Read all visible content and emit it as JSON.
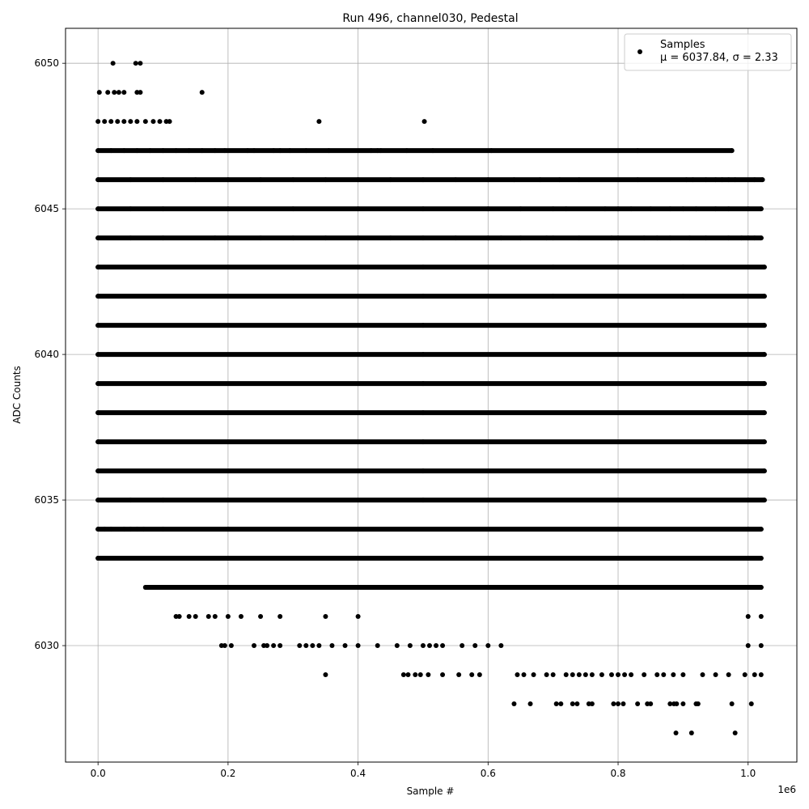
{
  "chart_data": {
    "type": "scatter",
    "title": "Run 496, channel030, Pedestal",
    "xlabel": "Sample #",
    "ylabel": "ADC Counts",
    "x_offset_label": "1e6",
    "xlim": [
      -0.05,
      1.075
    ],
    "ylim": [
      6026.0,
      6051.2
    ],
    "x_ticks": [
      0.0,
      0.2,
      0.4,
      0.6,
      0.8,
      1.0
    ],
    "x_tick_labels": [
      "0.0",
      "0.2",
      "0.4",
      "0.6",
      "0.8",
      "1.0"
    ],
    "y_ticks": [
      6030,
      6035,
      6040,
      6045,
      6050
    ],
    "y_tick_labels": [
      "6030",
      "6035",
      "6040",
      "6045",
      "6050"
    ],
    "grid": true,
    "legend_position": "top-right",
    "series": [
      {
        "name": "Samples",
        "color": "#000000",
        "marker": "circle",
        "stats_label": "μ = 6037.84, σ = 2.33",
        "bands": [
          {
            "y": 6027,
            "x": [
              0.889,
              0.913,
              0.98
            ]
          },
          {
            "y": 6028,
            "x": [
              0.64,
              0.665,
              0.705,
              0.712,
              0.73,
              0.737,
              0.755,
              0.76,
              0.793,
              0.8,
              0.808,
              0.83,
              0.845,
              0.85,
              0.88,
              0.886,
              0.89,
              0.9,
              0.92,
              0.923,
              0.975,
              1.005
            ]
          },
          {
            "y": 6029,
            "x": [
              0.35,
              0.47,
              0.477,
              0.488,
              0.496,
              0.508,
              0.53,
              0.555,
              0.575,
              0.587,
              0.645,
              0.655,
              0.67,
              0.69,
              0.7,
              0.72,
              0.73,
              0.74,
              0.75,
              0.76,
              0.775,
              0.79,
              0.8,
              0.81,
              0.82,
              0.84,
              0.86,
              0.87,
              0.885,
              0.9,
              0.93,
              0.95,
              0.97,
              0.995,
              1.01,
              1.02
            ]
          },
          {
            "y": 6030,
            "x": [
              0.19,
              0.195,
              0.205,
              0.24,
              0.255,
              0.26,
              0.27,
              0.28,
              0.31,
              0.32,
              0.33,
              0.34,
              0.36,
              0.38,
              0.4,
              0.43,
              0.46,
              0.48,
              0.5,
              0.51,
              0.52,
              0.53,
              0.56,
              0.58,
              0.6,
              0.62,
              1.0,
              1.02
            ]
          },
          {
            "y": 6031,
            "x": [
              0.12,
              0.125,
              0.14,
              0.15,
              0.17,
              0.18,
              0.2,
              0.22,
              0.25,
              0.28,
              0.35,
              0.4,
              1.0,
              1.02
            ]
          },
          {
            "y": 6032,
            "x": [
              0.073,
              0.08,
              0.1,
              0.12,
              0.15,
              0.2,
              0.3,
              0.4,
              0.5,
              0.6,
              1.0,
              1.02
            ]
          },
          {
            "y": 6033,
            "x": [
              0.0,
              0.008,
              0.02,
              0.035,
              0.05,
              0.06,
              0.07,
              0.1,
              0.2,
              0.3,
              0.4,
              0.5,
              1.0,
              1.02
            ]
          },
          {
            "y": 6034,
            "x": [
              0.0,
              0.01,
              0.02,
              0.04,
              0.05,
              0.06,
              0.07,
              0.1,
              0.2,
              1.0,
              1.02
            ]
          },
          {
            "y": 6035,
            "x": [
              0.0,
              0.05,
              0.1,
              0.5,
              1.0,
              1.025
            ]
          },
          {
            "y": 6036,
            "x": [
              0.0,
              0.5,
              1.025
            ]
          },
          {
            "y": 6037,
            "x": [
              0.0,
              0.5,
              1.025
            ]
          },
          {
            "y": 6038,
            "x": [
              0.0,
              0.5,
              1.025
            ]
          },
          {
            "y": 6039,
            "x": [
              0.0,
              0.5,
              1.025
            ]
          },
          {
            "y": 6040,
            "x": [
              0.0,
              0.5,
              1.025
            ]
          },
          {
            "y": 6041,
            "x": [
              0.0,
              0.5,
              1.025
            ]
          },
          {
            "y": 6042,
            "x": [
              0.0,
              0.5,
              0.7,
              0.9,
              1.025
            ]
          },
          {
            "y": 6043,
            "x": [
              0.0,
              0.5,
              0.7,
              0.9,
              1.025
            ]
          },
          {
            "y": 6044,
            "x": [
              0.0,
              0.05,
              0.1,
              0.18,
              0.2,
              0.25,
              0.3,
              0.35,
              0.4,
              0.45,
              0.5,
              0.55,
              0.6,
              0.62,
              0.65,
              0.69,
              0.7,
              0.74,
              0.79,
              0.8,
              0.84,
              0.86,
              0.88,
              0.91,
              0.935,
              0.97,
              0.99,
              1.0,
              1.01,
              1.02
            ]
          },
          {
            "y": 6045,
            "x": [
              0.0,
              0.05,
              0.1,
              0.2,
              0.3,
              0.4,
              0.5,
              0.6,
              0.65,
              0.7,
              0.72,
              0.78,
              0.8,
              0.82,
              0.85,
              0.88,
              0.9,
              0.92,
              0.95,
              0.97,
              1.0,
              1.02
            ]
          },
          {
            "y": 6046,
            "x": [
              0.0,
              0.05,
              0.1,
              0.15,
              0.2,
              0.25,
              0.3,
              0.35,
              0.4,
              0.45,
              0.5,
              0.55,
              0.6,
              0.64,
              0.68,
              0.71,
              0.74,
              0.83,
              0.905,
              0.915,
              0.935,
              0.95,
              0.96,
              0.97,
              0.98,
              1.01,
              1.022
            ]
          },
          {
            "y": 6047,
            "x": [
              0.0,
              0.02,
              0.04,
              0.06,
              0.08,
              0.1,
              0.12,
              0.14,
              0.16,
              0.18,
              0.195,
              0.23,
              0.24,
              0.27,
              0.28,
              0.295,
              0.32,
              0.355,
              0.42,
              0.43,
              0.435,
              0.475,
              0.515,
              0.605,
              0.83,
              0.975
            ]
          },
          {
            "y": 6048,
            "x": [
              0.0,
              0.01,
              0.02,
              0.03,
              0.04,
              0.05,
              0.06,
              0.073,
              0.085,
              0.095,
              0.105,
              0.11,
              0.34,
              0.502
            ]
          },
          {
            "y": 6049,
            "x": [
              0.002,
              0.015,
              0.025,
              0.032,
              0.04,
              0.06,
              0.065,
              0.16
            ]
          },
          {
            "y": 6050,
            "x": [
              0.023,
              0.058,
              0.065
            ]
          }
        ]
      }
    ]
  }
}
